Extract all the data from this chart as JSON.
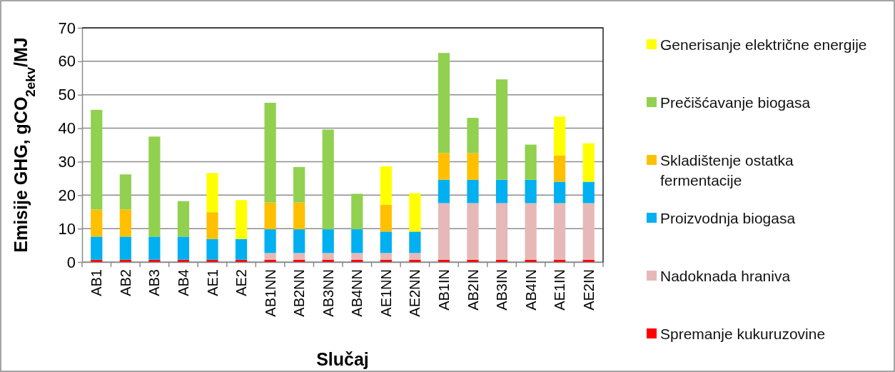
{
  "chart_data": {
    "type": "bar",
    "stacked": true,
    "xlabel": "Slučaj",
    "ylabel": "Emisije GHG, gCO$_{2ekv}$/MJ",
    "categories": [
      "AB1",
      "AB2",
      "AB3",
      "AB4",
      "AE1",
      "AE2",
      "AB1NN",
      "AB2NN",
      "AB3NN",
      "AB4NN",
      "AE1NN",
      "AE2NN",
      "AB1IN",
      "AB2IN",
      "AB3IN",
      "AB4IN",
      "AE1IN",
      "AE2IN"
    ],
    "ylim": [
      0,
      70
    ],
    "yticks": [
      0,
      10,
      20,
      30,
      40,
      50,
      60,
      70
    ],
    "grid": "y",
    "legend": "right",
    "series": [
      {
        "name": "Spremanje kukuruzovine",
        "color": "#ff0000",
        "values": [
          0.7,
          0.7,
          0.7,
          0.7,
          0.7,
          0.7,
          0.7,
          0.7,
          0.7,
          0.7,
          0.7,
          0.7,
          0.7,
          0.7,
          0.7,
          0.7,
          0.7,
          0.7
        ]
      },
      {
        "name": "Nadoknada hraniva",
        "color": "#e6b9b8",
        "values": [
          0,
          0,
          0,
          0,
          0,
          0,
          2.0,
          2.0,
          2.0,
          2.0,
          2.0,
          2.0,
          16.9,
          16.9,
          16.9,
          16.9,
          16.9,
          16.9
        ]
      },
      {
        "name": "Proizvodnja biogasa",
        "color": "#00b0f0",
        "values": [
          6.9,
          6.9,
          6.9,
          6.9,
          6.2,
          6.2,
          7.1,
          7.1,
          7.1,
          7.1,
          6.4,
          6.4,
          7.0,
          7.0,
          7.0,
          7.0,
          6.4,
          6.4
        ]
      },
      {
        "name": "Skladištenje ostatka fermentacije",
        "color": "#ffc000",
        "values": [
          8.1,
          8.1,
          0,
          0,
          8.0,
          0,
          8.0,
          8.0,
          0,
          0,
          8.0,
          0,
          8.0,
          8.0,
          0,
          0,
          7.9,
          0
        ]
      },
      {
        "name": "Prečišćavanje biogasa",
        "color": "#92d050",
        "values": [
          29.8,
          10.5,
          29.9,
          10.6,
          0,
          0,
          29.8,
          10.6,
          29.8,
          10.6,
          0,
          0,
          29.9,
          10.5,
          30.0,
          10.5,
          0,
          0
        ]
      },
      {
        "name": "Generisanje električne energije",
        "color": "#ffff00",
        "values": [
          0,
          0,
          0,
          0,
          11.7,
          11.6,
          0,
          0,
          0,
          0,
          11.5,
          11.5,
          0,
          0,
          0,
          0,
          11.6,
          11.5
        ]
      }
    ]
  }
}
